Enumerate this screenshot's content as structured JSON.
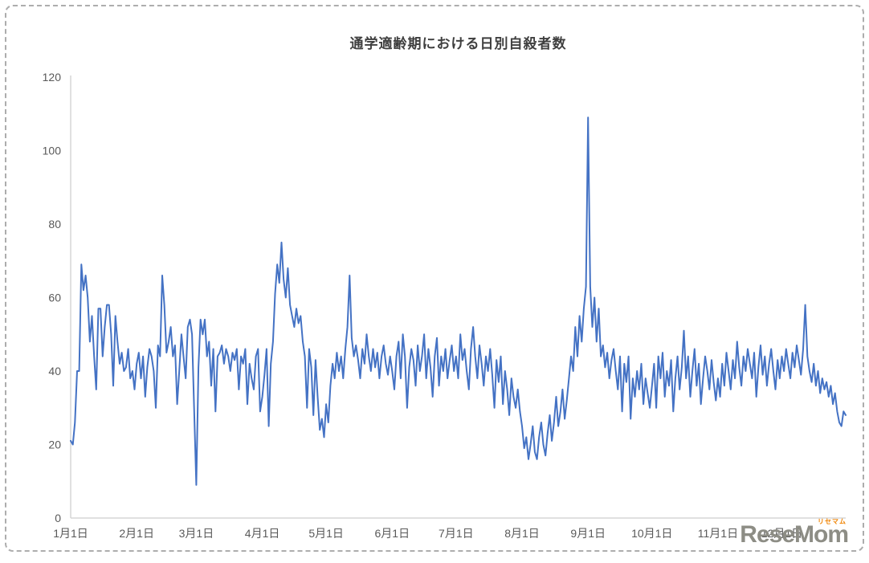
{
  "logo": {
    "text": "ReseMom",
    "sub": "リセマム"
  },
  "chart_data": {
    "type": "line",
    "title": "通学適齢期における日別自殺者数",
    "xlabel": "",
    "ylabel": "",
    "ylim": [
      0,
      120
    ],
    "yticks": [
      0,
      20,
      40,
      60,
      80,
      100,
      120
    ],
    "grid": false,
    "legend": "none",
    "series_name": "日別自殺者数",
    "x_unit": "day-of-year",
    "x_ticks": [
      {
        "label": "1月1日",
        "day": 0
      },
      {
        "label": "2月1日",
        "day": 31
      },
      {
        "label": "3月1日",
        "day": 59
      },
      {
        "label": "4月1日",
        "day": 90
      },
      {
        "label": "5月1日",
        "day": 120
      },
      {
        "label": "6月1日",
        "day": 151
      },
      {
        "label": "7月1日",
        "day": 181
      },
      {
        "label": "8月1日",
        "day": 212
      },
      {
        "label": "9月1日",
        "day": 243
      },
      {
        "label": "10月1日",
        "day": 273
      },
      {
        "label": "11月1日",
        "day": 304
      },
      {
        "label": "12月1日",
        "day": 334
      }
    ],
    "values": [
      21,
      20,
      26,
      40,
      40,
      69,
      62,
      66,
      60,
      48,
      55,
      44,
      35,
      57,
      57,
      44,
      52,
      58,
      58,
      50,
      36,
      55,
      48,
      42,
      45,
      40,
      41,
      46,
      38,
      40,
      35,
      42,
      45,
      38,
      44,
      33,
      41,
      46,
      44,
      40,
      30,
      47,
      44,
      66,
      58,
      45,
      48,
      52,
      44,
      47,
      31,
      40,
      50,
      44,
      38,
      52,
      54,
      50,
      29,
      9,
      41,
      54,
      50,
      54,
      44,
      48,
      36,
      46,
      29,
      44,
      45,
      47,
      42,
      46,
      44,
      40,
      45,
      43,
      46,
      35,
      44,
      42,
      46,
      31,
      42,
      38,
      35,
      44,
      46,
      29,
      33,
      39,
      46,
      25,
      42,
      48,
      61,
      69,
      64,
      75,
      65,
      60,
      68,
      58,
      55,
      52,
      57,
      53,
      55,
      48,
      44,
      30,
      46,
      41,
      28,
      43,
      33,
      24,
      27,
      22,
      31,
      26,
      36,
      42,
      38,
      45,
      40,
      44,
      38,
      46,
      52,
      66,
      49,
      44,
      47,
      43,
      38,
      46,
      42,
      50,
      44,
      40,
      46,
      41,
      45,
      38,
      44,
      47,
      42,
      39,
      44,
      40,
      35,
      44,
      48,
      38,
      50,
      44,
      30,
      41,
      46,
      43,
      36,
      47,
      40,
      44,
      50,
      38,
      46,
      41,
      33,
      44,
      49,
      36,
      44,
      40,
      46,
      38,
      43,
      47,
      40,
      44,
      38,
      50,
      43,
      46,
      40,
      35,
      46,
      52,
      44,
      38,
      47,
      42,
      36,
      44,
      40,
      46,
      39,
      30,
      43,
      37,
      44,
      31,
      40,
      35,
      28,
      38,
      33,
      30,
      35,
      29,
      25,
      19,
      22,
      16,
      20,
      25,
      18,
      16,
      22,
      26,
      20,
      17,
      23,
      28,
      21,
      26,
      33,
      25,
      29,
      35,
      27,
      32,
      38,
      44,
      40,
      52,
      44,
      55,
      48,
      57,
      63,
      109,
      63,
      52,
      60,
      48,
      57,
      44,
      47,
      41,
      45,
      38,
      43,
      46,
      40,
      35,
      44,
      29,
      42,
      37,
      44,
      27,
      38,
      33,
      40,
      35,
      42,
      31,
      38,
      34,
      30,
      36,
      42,
      30,
      44,
      38,
      45,
      33,
      40,
      36,
      43,
      29,
      38,
      44,
      35,
      41,
      51,
      38,
      44,
      33,
      40,
      46,
      36,
      42,
      31,
      38,
      44,
      40,
      35,
      43,
      37,
      32,
      38,
      33,
      42,
      36,
      45,
      40,
      35,
      43,
      38,
      48,
      41,
      36,
      44,
      40,
      46,
      42,
      38,
      45,
      33,
      41,
      47,
      39,
      44,
      36,
      42,
      46,
      40,
      35,
      43,
      38,
      44,
      40,
      46,
      42,
      38,
      45,
      41,
      47,
      43,
      39,
      46,
      58,
      44,
      40,
      37,
      42,
      36,
      40,
      34,
      38,
      35,
      37,
      33,
      36,
      31,
      34,
      29,
      26,
      25,
      29,
      28
    ],
    "colors": {
      "line": "#4472C4",
      "axis": "#d6d6d6",
      "label": "#595959",
      "title": "#3f3f3f"
    }
  }
}
